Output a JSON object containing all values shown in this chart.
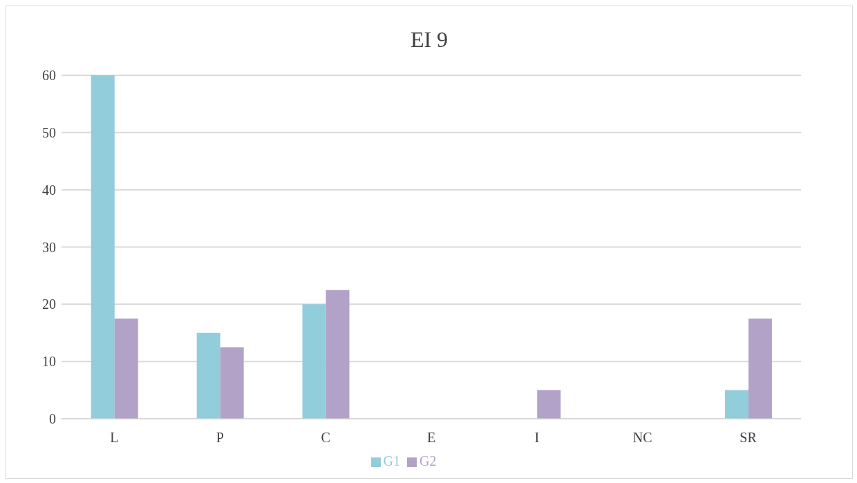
{
  "chart_data": {
    "type": "bar",
    "title": "EI 9",
    "categories": [
      "L",
      "P",
      "C",
      "E",
      "I",
      "NC",
      "SR"
    ],
    "series": [
      {
        "name": "G1",
        "color": "#92cddc",
        "values": [
          60,
          15,
          20,
          0,
          0,
          0,
          5
        ]
      },
      {
        "name": "G2",
        "color": "#b3a2c7",
        "values": [
          17.5,
          12.5,
          22.5,
          0,
          5,
          0,
          17.5
        ]
      }
    ],
    "ylim": [
      0,
      60
    ],
    "yticks": [
      0,
      10,
      20,
      30,
      40,
      50,
      60
    ],
    "grid": "y",
    "legend": "bottom"
  }
}
